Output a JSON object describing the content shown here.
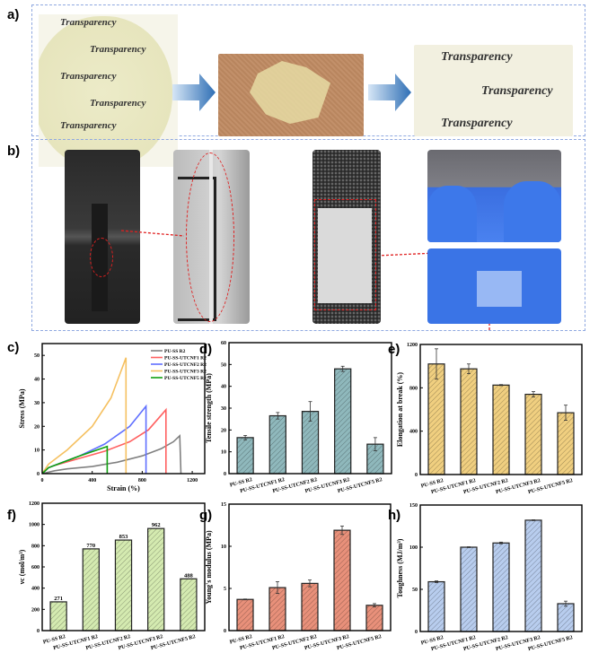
{
  "panels": {
    "a": "a)",
    "b": "b)",
    "c": "c)",
    "d": "d)",
    "e": "e)",
    "f": "f)",
    "g": "g)",
    "h": "h)"
  },
  "photos": {
    "a_text": "Transparency",
    "a_left_desc": "transparent film disc over text",
    "a_mid_desc": "cut film pieces",
    "a_right_desc": "reprocessed transparent film over text"
  },
  "colors": {
    "frame": "#8fa8e0",
    "arrow": "#2f6fb5",
    "highlight": "#e02020"
  },
  "chart_data": [
    {
      "id": "c",
      "type": "line",
      "xlabel": "Strain (%)",
      "ylabel": "Stress (MPa)",
      "xlim": [
        0,
        1300
      ],
      "ylim": [
        0,
        55
      ],
      "xticks": [
        0,
        400,
        800,
        1200
      ],
      "yticks": [
        0,
        10,
        20,
        30,
        40,
        50
      ],
      "legend": "top-right",
      "series": [
        {
          "name": "PU-SS R2",
          "color": "#808080",
          "points": [
            [
              0,
              0
            ],
            [
              100,
              1.2
            ],
            [
              200,
              2
            ],
            [
              400,
              3
            ],
            [
              600,
              4.8
            ],
            [
              800,
              7.5
            ],
            [
              950,
              10.5
            ],
            [
              1050,
              13.5
            ],
            [
              1100,
              16
            ],
            [
              1110,
              0
            ]
          ]
        },
        {
          "name": "PU-SS-UTCNF1 R2",
          "color": "#ff6060",
          "points": [
            [
              0,
              0
            ],
            [
              50,
              2.5
            ],
            [
              100,
              3.5
            ],
            [
              300,
              6.5
            ],
            [
              500,
              9.5
            ],
            [
              700,
              13.5
            ],
            [
              850,
              18.5
            ],
            [
              990,
              27
            ],
            [
              990,
              0
            ]
          ]
        },
        {
          "name": "PU-SS-UTCNF2 R2",
          "color": "#6070ff",
          "points": [
            [
              0,
              0
            ],
            [
              50,
              2.5
            ],
            [
              100,
              3.5
            ],
            [
              300,
              7.5
            ],
            [
              500,
              12.5
            ],
            [
              700,
              20
            ],
            [
              830,
              28.5
            ],
            [
              830,
              0
            ]
          ]
        },
        {
          "name": "PU-SS-UTCNF3 R2",
          "color": "#f5c060",
          "points": [
            [
              0,
              0
            ],
            [
              50,
              4
            ],
            [
              200,
              10
            ],
            [
              400,
              20
            ],
            [
              550,
              32
            ],
            [
              670,
              49
            ],
            [
              670,
              0
            ]
          ]
        },
        {
          "name": "PU-SS-UTCNF5 R2",
          "color": "#10a010",
          "points": [
            [
              0,
              0
            ],
            [
              50,
              2.5
            ],
            [
              100,
              3.5
            ],
            [
              300,
              7.5
            ],
            [
              520,
              11.5
            ],
            [
              520,
              0
            ]
          ]
        }
      ]
    },
    {
      "id": "d",
      "type": "bar",
      "ylabel": "Tensile strength (MPa)",
      "ylim": [
        0,
        60
      ],
      "yticks": [
        0,
        10,
        20,
        30,
        40,
        50,
        60
      ],
      "categories": [
        "PU-SS R2",
        "PU-SS-UTCNF1 R2",
        "PU-SS-UTCNF2 R2",
        "PU-SS-UTCNF3 R2",
        "PU-SS-UTCNF5 R2"
      ],
      "values": [
        16.5,
        26.5,
        28.5,
        48,
        13.5
      ],
      "errors": [
        1,
        1.5,
        4.5,
        1.2,
        3
      ],
      "color": "#8fb8bc"
    },
    {
      "id": "e",
      "type": "bar",
      "ylabel": "Elongation at break (%)",
      "ylim": [
        0,
        1200
      ],
      "yticks": [
        0,
        400,
        800,
        1200
      ],
      "categories": [
        "PU-SS R2",
        "PU-SS-UTCNF1 R2",
        "PU-SS-UTCNF2 R2",
        "PU-SS-UTCNF3 R2",
        "PU-SS-UTCNF5 R2"
      ],
      "values": [
        1020,
        975,
        825,
        740,
        570
      ],
      "errors": [
        140,
        45,
        5,
        25,
        70
      ],
      "color": "#f0cf80"
    },
    {
      "id": "f",
      "type": "bar",
      "ylabel": "νc (mol/m³)",
      "ylim": [
        0,
        1200
      ],
      "yticks": [
        0,
        200,
        400,
        600,
        800,
        1000,
        1200
      ],
      "categories": [
        "PU-SS R2",
        "PU-SS-UTCNF1 R2",
        "PU-SS-UTCNF2 R2",
        "PU-SS-UTCNF3 R2",
        "PU-SS-UTCNF5 R2"
      ],
      "values": [
        271,
        770,
        853,
        962,
        488
      ],
      "data_labels": [
        "271",
        "770",
        "853",
        "962",
        "488"
      ],
      "color": "#d4eab0"
    },
    {
      "id": "g",
      "type": "bar",
      "ylabel": "Young's modulus (MPa)",
      "ylim": [
        0,
        15
      ],
      "yticks": [
        0,
        5,
        10,
        15
      ],
      "categories": [
        "PU-SS R2",
        "PU-SS-UTCNF1 R2",
        "PU-SS-UTCNF2 R2",
        "PU-SS-UTCNF3 R2",
        "PU-SS-UTCNF5 R2"
      ],
      "values": [
        3.7,
        5.1,
        5.6,
        11.9,
        3.0
      ],
      "errors": [
        0.05,
        0.7,
        0.4,
        0.5,
        0.2
      ],
      "color": "#e8907a"
    },
    {
      "id": "h",
      "type": "bar",
      "ylabel": "Toughness (MJ/m³)",
      "ylim": [
        0,
        150
      ],
      "yticks": [
        0,
        50,
        100,
        150
      ],
      "categories": [
        "PU-SS R2",
        "PU-SS-UTCNF1 R2",
        "PU-SS-UTCNF2 R2",
        "PU-SS-UTCNF3 R2",
        "PU-SS-UTCNF5 R2"
      ],
      "values": [
        59,
        100,
        105,
        132,
        33
      ],
      "errors": [
        1,
        0.5,
        1,
        0.5,
        3
      ],
      "color": "#b8cdee"
    }
  ]
}
